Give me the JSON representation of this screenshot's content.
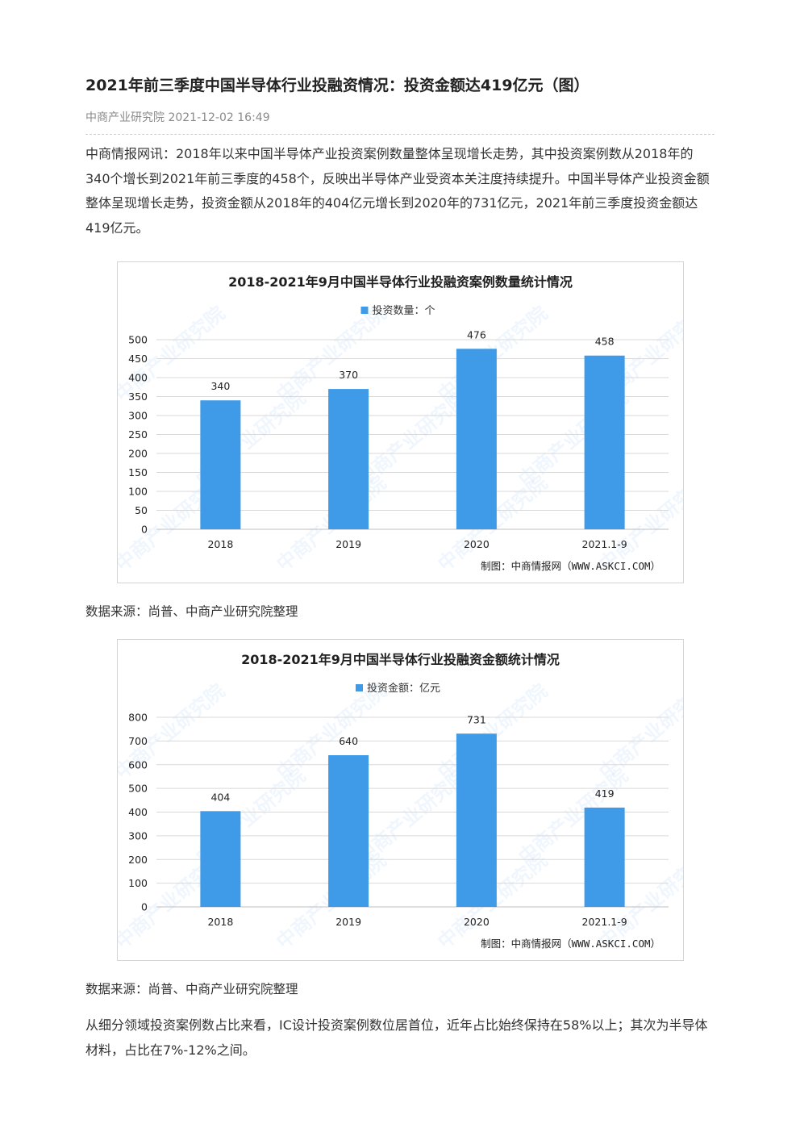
{
  "article": {
    "title": "2021年前三季度中国半导体行业投融资情况：投资金额达419亿元（图）",
    "source_org": "中商产业研究院",
    "datetime": "2021-12-02 16:49",
    "paragraph1": "中商情报网讯：2018年以来中国半导体产业投资案例数量整体呈现增长走势，其中投资案例数从2018年的340个增长到2021年前三季度的458个，反映出半导体产业受资本关注度持续提升。中国半导体产业投资金额整体呈现增长走势，投资金额从2018年的404亿元增长到2020年的731亿元，2021年前三季度投资金额达419亿元。",
    "source1": "数据来源：尚普、中商产业研究院整理",
    "source2": "数据来源：尚普、中商产业研究院整理",
    "paragraph2": "从细分领域投资案例数占比来看，IC设计投资案例数位居首位，近年占比始终保持在58%以上；其次为半导体材料，占比在7%-12%之间。"
  },
  "watermark": "中商产业研究院",
  "chart_data": [
    {
      "type": "bar",
      "title": "2018-2021年9月中国半导体行业投融资案例数量统计情况",
      "categories": [
        "2018",
        "2019",
        "2020",
        "2021.1-9"
      ],
      "series": [
        {
          "name": "投资数量：个",
          "values": [
            340,
            370,
            476,
            458
          ]
        }
      ],
      "ylim": [
        0,
        500
      ],
      "yticks": [
        "0",
        "50",
        "100",
        "150",
        "200",
        "250",
        "300",
        "350",
        "400",
        "450",
        "500"
      ],
      "grid": true,
      "legend": "top-center",
      "bar_color": "#3f9ae8",
      "credit": "制图：中商情报网（WWW.ASKCI.COM）"
    },
    {
      "type": "bar",
      "title": "2018-2021年9月中国半导体行业投融资金额统计情况",
      "categories": [
        "2018",
        "2019",
        "2020",
        "2021.1-9"
      ],
      "series": [
        {
          "name": "投资金额：亿元",
          "values": [
            404,
            640,
            731,
            419
          ]
        }
      ],
      "ylim": [
        0,
        800
      ],
      "yticks": [
        "0",
        "100",
        "200",
        "300",
        "400",
        "500",
        "600",
        "700",
        "800"
      ],
      "grid": true,
      "legend": "top-center",
      "bar_color": "#3f9ae8",
      "credit": "制图：中商情报网（WWW.ASKCI.COM）"
    }
  ]
}
